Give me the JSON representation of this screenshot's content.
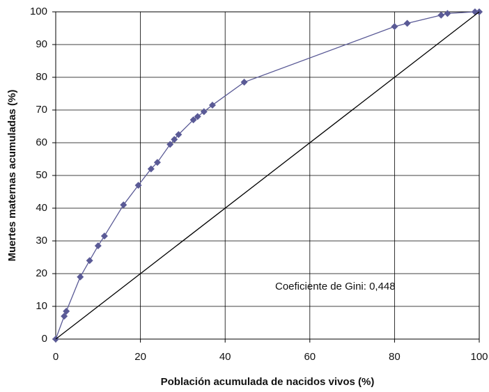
{
  "chart_data": {
    "type": "line",
    "x_label": "Población acumulada de nacidos vivos (%)",
    "y_label": "Muertes maternas acumuladas  (%)",
    "annotation": "Coeficiente de Gini: 0,448",
    "xlim": [
      0,
      100
    ],
    "xticks": [
      0,
      20,
      40,
      60,
      80,
      100
    ],
    "ylim": [
      0,
      100
    ],
    "yticks": [
      0,
      10,
      20,
      30,
      40,
      50,
      60,
      70,
      80,
      90,
      100
    ],
    "grid": true,
    "series": [
      {
        "color": "#5a5a96",
        "marker": true,
        "x": [
          0,
          2,
          2.5,
          5.8,
          8,
          10,
          11.5,
          16,
          19.5,
          22.5,
          24,
          27,
          28,
          29,
          32.5,
          33.5,
          35,
          37,
          44.5,
          80,
          83,
          91,
          92.5,
          99,
          100
        ],
        "values": [
          0,
          7,
          8.5,
          19,
          24,
          28.5,
          31.5,
          41,
          47,
          52,
          54,
          59.5,
          61,
          62.5,
          67,
          68,
          69.5,
          71.5,
          78.5,
          95.5,
          96.5,
          99,
          99.5,
          100,
          100
        ]
      },
      {
        "color": "#000000",
        "marker": false,
        "x": [
          0,
          100
        ],
        "values": [
          0,
          100
        ]
      }
    ]
  }
}
